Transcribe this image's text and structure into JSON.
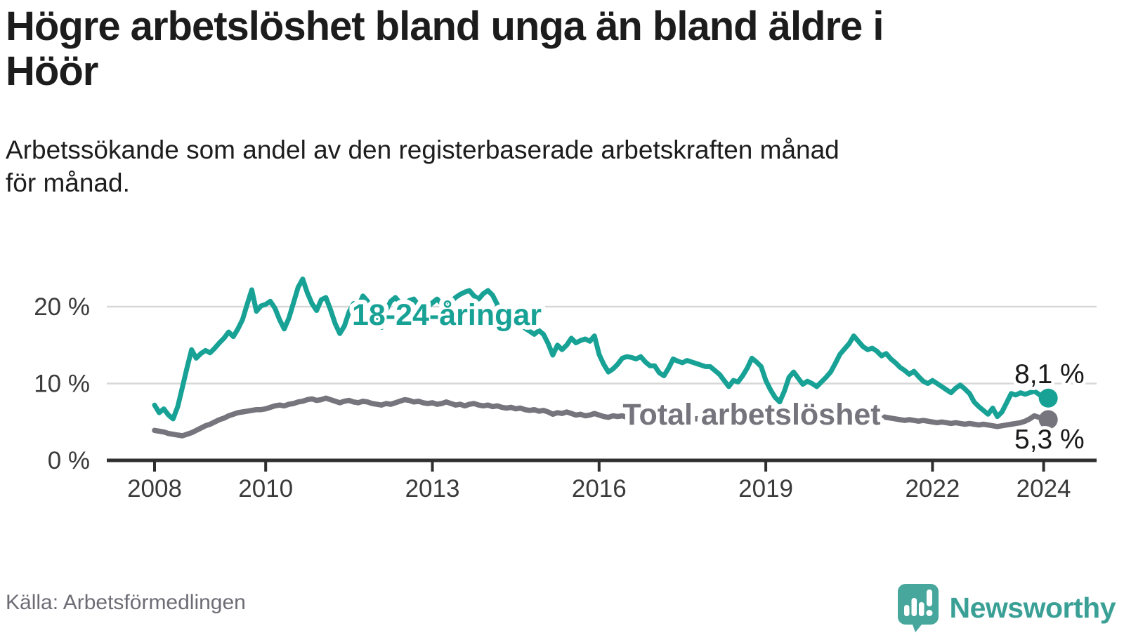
{
  "header": {
    "title_lines": [
      "Högre arbetslöshet bland unga än bland äldre i",
      "Höör"
    ],
    "subtitle_lines": [
      "Arbetssökande som andel av den registerbaserade arbetskraften månad",
      "för månad."
    ]
  },
  "footer": {
    "source": "Källa: Arbetsförmedlingen",
    "brand_name": "Newsworthy"
  },
  "colors": {
    "youth_line": "#18a296",
    "total_line": "#76757d",
    "grid": "#d8d8d8",
    "axis": "#2f2f2f",
    "tick_label": "#3a3a3a",
    "value_label": "#1a1a1a",
    "logo_teal": "#47a79d",
    "brand_text": "#3aa096",
    "source_text": "#6e6d75"
  },
  "chart_data": {
    "type": "line",
    "x_start": "2008-01",
    "x_end": "2024-02",
    "x_frequency": "monthly",
    "x_tick_years": [
      2008,
      2010,
      2013,
      2016,
      2019,
      2022,
      2024
    ],
    "y_ticks": [
      {
        "value": 0,
        "label": "0 %"
      },
      {
        "value": 10,
        "label": "10 %"
      },
      {
        "value": 20,
        "label": "20 %"
      }
    ],
    "ylim": [
      0,
      25
    ],
    "grid": "horizontal-only",
    "series": [
      {
        "name": "18-24-åringar",
        "color": "#18a296",
        "end_value_label": "8,1 %",
        "values": [
          7.2,
          6.2,
          6.7,
          5.9,
          5.4,
          7.0,
          9.5,
          12.0,
          14.4,
          13.3,
          13.9,
          14.3,
          14.0,
          14.6,
          15.3,
          15.9,
          16.7,
          16.1,
          17.1,
          18.3,
          20.3,
          22.2,
          19.4,
          20.1,
          20.3,
          20.7,
          19.8,
          18.3,
          17.1,
          18.5,
          20.5,
          22.5,
          23.6,
          21.8,
          20.4,
          19.5,
          20.9,
          21.2,
          19.6,
          17.8,
          16.5,
          17.5,
          19.3,
          20.4,
          20.0,
          21.4,
          20.7,
          19.0,
          18.5,
          17.3,
          19.5,
          20.7,
          21.2,
          20.5,
          19.8,
          20.8,
          21.0,
          20.2,
          19.6,
          20.0,
          20.5,
          21.0,
          20.4,
          19.8,
          20.6,
          21.2,
          21.6,
          21.9,
          22.1,
          21.4,
          21.0,
          21.7,
          22.1,
          21.5,
          20.3,
          18.5,
          19.3,
          18.6,
          17.5,
          18.0,
          17.2,
          16.8,
          16.4,
          16.9,
          16.4,
          15.2,
          13.7,
          15.0,
          14.4,
          15.0,
          15.9,
          15.3,
          15.6,
          15.8,
          15.5,
          16.2,
          13.8,
          12.5,
          11.5,
          11.9,
          12.5,
          13.3,
          13.5,
          13.4,
          13.2,
          13.5,
          12.8,
          12.3,
          12.3,
          11.4,
          11.0,
          12.0,
          13.2,
          12.9,
          12.7,
          13.0,
          12.8,
          12.6,
          12.4,
          12.2,
          12.2,
          11.7,
          11.2,
          10.4,
          9.6,
          10.4,
          10.2,
          11.0,
          12.0,
          13.3,
          12.8,
          12.2,
          10.4,
          9.2,
          8.2,
          7.6,
          9.0,
          10.8,
          11.5,
          10.7,
          9.9,
          10.3,
          10.0,
          9.6,
          10.2,
          10.8,
          11.5,
          12.6,
          13.8,
          14.5,
          15.2,
          16.2,
          15.5,
          14.8,
          14.4,
          14.6,
          14.2,
          13.6,
          13.9,
          13.2,
          12.7,
          12.1,
          11.7,
          11.2,
          11.6,
          10.9,
          10.3,
          10.0,
          10.4,
          10.0,
          9.6,
          9.2,
          8.8,
          9.4,
          9.8,
          9.3,
          8.7,
          7.6,
          7.0,
          6.5,
          6.0,
          6.8,
          5.7,
          6.3,
          7.5,
          8.7,
          8.5,
          8.8,
          8.6,
          8.8,
          9.0,
          8.6,
          8.0,
          8.1
        ]
      },
      {
        "name": "Total arbetslöshet",
        "color": "#76757d",
        "end_value_label": "5,3 %",
        "values": [
          3.9,
          3.8,
          3.7,
          3.5,
          3.4,
          3.3,
          3.2,
          3.4,
          3.6,
          3.9,
          4.2,
          4.5,
          4.7,
          5.0,
          5.3,
          5.5,
          5.8,
          6.0,
          6.2,
          6.3,
          6.4,
          6.5,
          6.6,
          6.6,
          6.7,
          6.9,
          7.1,
          7.2,
          7.1,
          7.3,
          7.4,
          7.6,
          7.7,
          7.9,
          8.0,
          7.8,
          7.9,
          8.1,
          7.9,
          7.7,
          7.5,
          7.7,
          7.8,
          7.6,
          7.5,
          7.7,
          7.6,
          7.4,
          7.3,
          7.2,
          7.4,
          7.3,
          7.5,
          7.7,
          7.9,
          7.8,
          7.6,
          7.7,
          7.5,
          7.4,
          7.5,
          7.3,
          7.4,
          7.6,
          7.4,
          7.2,
          7.3,
          7.1,
          7.3,
          7.4,
          7.2,
          7.1,
          7.2,
          7.0,
          7.1,
          6.9,
          6.8,
          6.9,
          6.7,
          6.8,
          6.6,
          6.5,
          6.6,
          6.4,
          6.5,
          6.3,
          6.0,
          6.2,
          6.1,
          6.3,
          6.1,
          5.9,
          6.0,
          5.8,
          5.9,
          6.1,
          5.9,
          5.7,
          5.6,
          5.8,
          5.7,
          5.8,
          5.6,
          5.7,
          5.5,
          5.6,
          5.5,
          5.6,
          5.5,
          5.4,
          5.5,
          5.6,
          5.5,
          5.6,
          5.5,
          5.4,
          5.5,
          5.4,
          5.5,
          5.4,
          5.5,
          5.4,
          5.3,
          5.4,
          5.3,
          5.4,
          5.5,
          5.4,
          5.3,
          5.4,
          5.3,
          5.4,
          5.5,
          5.4,
          5.3,
          5.4,
          5.5,
          5.6,
          5.7,
          5.6,
          5.5,
          5.6,
          5.5,
          5.6,
          5.7,
          5.8,
          5.9,
          6.1,
          6.2,
          6.3,
          6.2,
          6.1,
          6.0,
          5.9,
          5.8,
          5.9,
          5.8,
          5.7,
          5.6,
          5.5,
          5.4,
          5.3,
          5.2,
          5.3,
          5.2,
          5.1,
          5.2,
          5.1,
          5.0,
          4.9,
          5.0,
          4.9,
          4.8,
          4.9,
          4.8,
          4.7,
          4.8,
          4.7,
          4.6,
          4.7,
          4.6,
          4.5,
          4.4,
          4.5,
          4.6,
          4.7,
          4.8,
          4.9,
          5.1,
          5.4,
          5.8,
          5.6,
          5.4,
          5.3
        ]
      }
    ]
  }
}
